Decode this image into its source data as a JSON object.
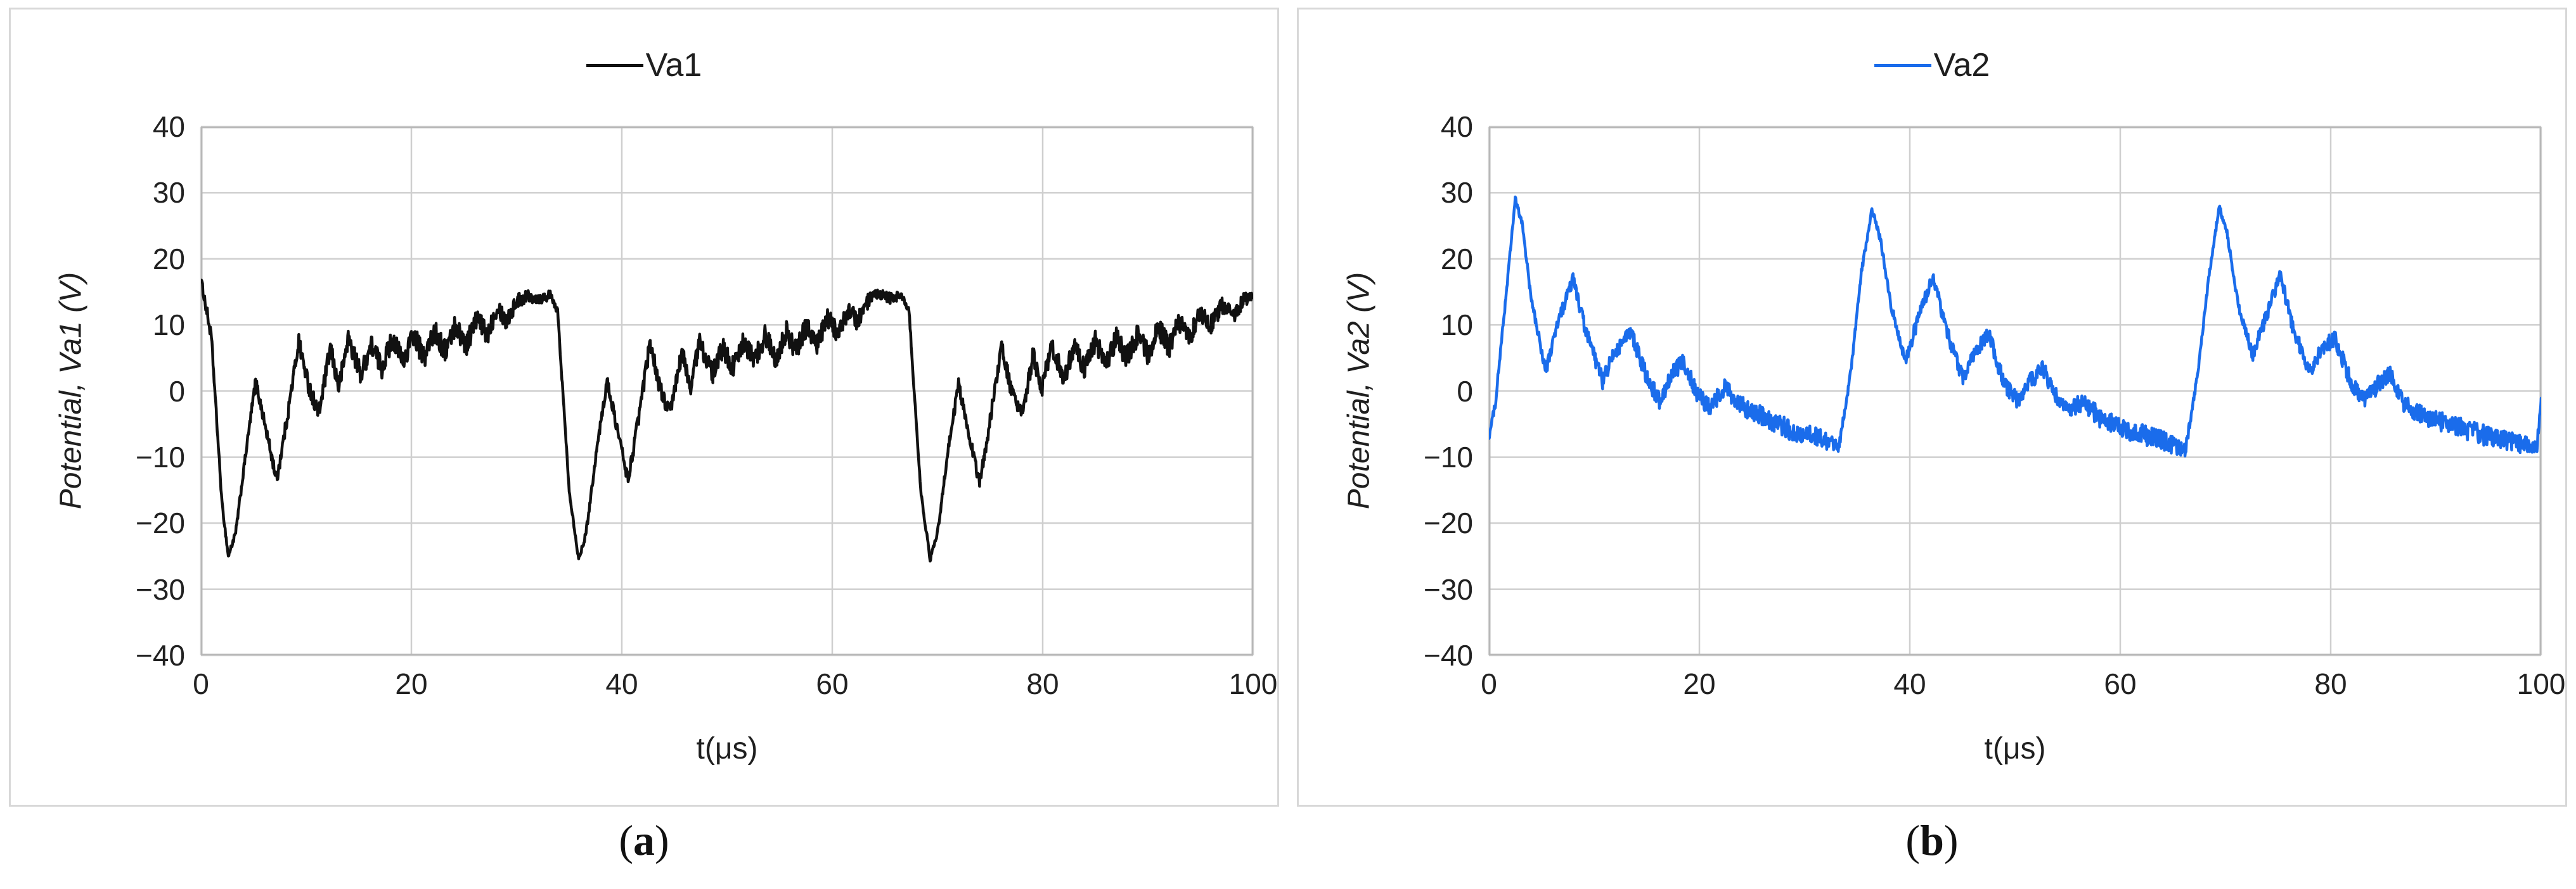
{
  "captions": [
    {
      "pre": "(",
      "letter": "a",
      "post": ")"
    },
    {
      "pre": "(",
      "letter": "b",
      "post": ")"
    }
  ],
  "colors": {
    "series_black": "#111111",
    "series_blue": "#1a6ceb",
    "gridline": "#cfcfcf",
    "plot_border": "#b8b8b8",
    "panel_border": "#d8d8d8"
  },
  "chart_data": [
    {
      "type": "line",
      "legend_label": "Va1",
      "xlabel": "t(μs)",
      "ylabel": "Potential, Va1 (V)",
      "xlim": [
        0,
        100
      ],
      "ylim": [
        -40,
        40
      ],
      "xticks": [
        0,
        20,
        40,
        60,
        80,
        100
      ],
      "yticks": [
        40,
        30,
        20,
        10,
        0,
        -10,
        -20,
        -30,
        -40
      ],
      "grid": true,
      "legend_position": "top-center",
      "series": [
        {
          "name": "Va1",
          "color": "#111111",
          "noise_note": "points are [t_us, volts, noise_amplitude_volts]",
          "points": [
            [
              0,
              17,
              0.5
            ],
            [
              0.5,
              12.5,
              1.0
            ],
            [
              1.0,
              8,
              0.8
            ],
            [
              2.0,
              -17,
              0.4
            ],
            [
              2.6,
              -25,
              0.4
            ],
            [
              3.3,
              -21.5,
              0.5
            ],
            [
              4.3,
              -9,
              0.6
            ],
            [
              5.2,
              1.5,
              0.9
            ],
            [
              6.2,
              -6,
              0.9
            ],
            [
              7.2,
              -13.5,
              1.0
            ],
            [
              8.2,
              -4,
              1.1
            ],
            [
              9.3,
              7.5,
              1.3
            ],
            [
              10.2,
              1,
              1.3
            ],
            [
              11.2,
              -3.5,
              1.3
            ],
            [
              12.3,
              6.5,
              1.4
            ],
            [
              13.1,
              0.5,
              1.4
            ],
            [
              14.0,
              8,
              1.5
            ],
            [
              15.2,
              2.5,
              1.5
            ],
            [
              16.2,
              7,
              1.6
            ],
            [
              17.2,
              3.5,
              1.6
            ],
            [
              18.2,
              8,
              1.6
            ],
            [
              19.2,
              4.5,
              1.6
            ],
            [
              20.2,
              8.5,
              1.7
            ],
            [
              21.2,
              5,
              1.7
            ],
            [
              22.2,
              9,
              1.7
            ],
            [
              23.2,
              6,
              1.7
            ],
            [
              24.2,
              10,
              1.7
            ],
            [
              25.2,
              7,
              1.7
            ],
            [
              26.2,
              11,
              1.6
            ],
            [
              27.2,
              8.5,
              1.6
            ],
            [
              28.2,
              13,
              1.4
            ],
            [
              29.0,
              10.5,
              1.4
            ],
            [
              30.0,
              13.5,
              1.2
            ],
            [
              31.0,
              14.5,
              1.0
            ],
            [
              32.2,
              14,
              0.9
            ],
            [
              33.2,
              14.5,
              0.7
            ],
            [
              33.9,
              12,
              0.5
            ],
            [
              35.0,
              -15,
              0.4
            ],
            [
              35.9,
              -25.5,
              0.4
            ],
            [
              36.6,
              -21.5,
              0.5
            ],
            [
              37.6,
              -9,
              0.6
            ],
            [
              38.6,
              1.5,
              0.9
            ],
            [
              39.6,
              -6,
              0.9
            ],
            [
              40.6,
              -13.5,
              1.0
            ],
            [
              41.6,
              -4,
              1.1
            ],
            [
              42.7,
              7.5,
              1.3
            ],
            [
              43.6,
              0.5,
              1.3
            ],
            [
              44.6,
              -3.5,
              1.3
            ],
            [
              45.7,
              6,
              1.4
            ],
            [
              46.5,
              0.5,
              1.4
            ],
            [
              47.4,
              7.5,
              1.5
            ],
            [
              48.6,
              2.5,
              1.5
            ],
            [
              49.6,
              6.5,
              1.6
            ],
            [
              50.6,
              3.5,
              1.6
            ],
            [
              51.6,
              7.5,
              1.6
            ],
            [
              52.6,
              4.5,
              1.6
            ],
            [
              53.6,
              8.5,
              1.7
            ],
            [
              54.6,
              5,
              1.7
            ],
            [
              55.6,
              9,
              1.7
            ],
            [
              56.6,
              6,
              1.7
            ],
            [
              57.6,
              10,
              1.7
            ],
            [
              58.6,
              7,
              1.7
            ],
            [
              59.6,
              11,
              1.6
            ],
            [
              60.6,
              8.5,
              1.6
            ],
            [
              61.6,
              12.5,
              1.4
            ],
            [
              62.4,
              10.5,
              1.4
            ],
            [
              63.4,
              13.5,
              1.2
            ],
            [
              64.4,
              14.5,
              1.0
            ],
            [
              65.6,
              14,
              0.9
            ],
            [
              66.6,
              14.5,
              0.7
            ],
            [
              67.3,
              12,
              0.5
            ],
            [
              68.4,
              -15,
              0.4
            ],
            [
              69.3,
              -25.5,
              0.4
            ],
            [
              70.0,
              -21.5,
              0.5
            ],
            [
              71.0,
              -9,
              0.6
            ],
            [
              72.0,
              1,
              0.9
            ],
            [
              73.0,
              -6.5,
              0.9
            ],
            [
              74.0,
              -14,
              1.0
            ],
            [
              75.0,
              -4.5,
              1.1
            ],
            [
              76.1,
              7,
              1.3
            ],
            [
              77.0,
              0,
              1.3
            ],
            [
              78.0,
              -4,
              1.3
            ],
            [
              79.1,
              5.5,
              1.4
            ],
            [
              79.9,
              0,
              1.4
            ],
            [
              80.8,
              7,
              1.5
            ],
            [
              82.0,
              2,
              1.5
            ],
            [
              83.0,
              6.5,
              1.6
            ],
            [
              84.0,
              3.5,
              1.6
            ],
            [
              85.0,
              7.5,
              1.6
            ],
            [
              86.0,
              4,
              1.6
            ],
            [
              87.0,
              8,
              1.7
            ],
            [
              88.0,
              5,
              1.7
            ],
            [
              89.0,
              8.5,
              1.7
            ],
            [
              90.0,
              5.5,
              1.7
            ],
            [
              91.0,
              9.5,
              1.7
            ],
            [
              92.0,
              6.5,
              1.7
            ],
            [
              93.0,
              10.5,
              1.6
            ],
            [
              94.0,
              8,
              1.6
            ],
            [
              95.0,
              12,
              1.5
            ],
            [
              96.0,
              10,
              1.5
            ],
            [
              97.0,
              13,
              1.3
            ],
            [
              98.2,
              11.5,
              1.3
            ],
            [
              99.2,
              14,
              1.0
            ],
            [
              100,
              14,
              0.8
            ]
          ]
        }
      ]
    },
    {
      "type": "line",
      "legend_label": "Va2",
      "xlabel": "t(μs)",
      "ylabel": "Potential, Va2 (V)",
      "xlim": [
        0,
        100
      ],
      "ylim": [
        -40,
        40
      ],
      "xticks": [
        0,
        20,
        40,
        60,
        80,
        100
      ],
      "yticks": [
        40,
        30,
        20,
        10,
        0,
        -10,
        -20,
        -30,
        -40
      ],
      "grid": true,
      "legend_position": "top-center",
      "series": [
        {
          "name": "Va2",
          "color": "#1a6ceb",
          "noise_note": "points are [t_us, volts, noise_amplitude_volts]",
          "points": [
            [
              0,
              -7,
              0.6
            ],
            [
              0.6,
              -2,
              0.6
            ],
            [
              1.6,
              14,
              0.5
            ],
            [
              2.5,
              29,
              0.5
            ],
            [
              3.2,
              25,
              0.6
            ],
            [
              4.0,
              14,
              0.6
            ],
            [
              5.4,
              3,
              1.0
            ],
            [
              6.5,
              10,
              1.1
            ],
            [
              8.0,
              17,
              1.0
            ],
            [
              9.2,
              9,
              1.1
            ],
            [
              10.8,
              1.5,
              1.2
            ],
            [
              12.0,
              6,
              1.2
            ],
            [
              13.5,
              9,
              1.2
            ],
            [
              15.0,
              2,
              1.3
            ],
            [
              16.2,
              -1.5,
              1.3
            ],
            [
              17.4,
              2.5,
              1.3
            ],
            [
              18.5,
              4.5,
              1.3
            ],
            [
              19.8,
              -0.5,
              1.4
            ],
            [
              21.0,
              -2.5,
              1.4
            ],
            [
              22.4,
              0.5,
              1.4
            ],
            [
              23.6,
              -2,
              1.5
            ],
            [
              25.5,
              -3.5,
              1.5
            ],
            [
              27.5,
              -5,
              1.5
            ],
            [
              29.5,
              -6.5,
              1.6
            ],
            [
              31.5,
              -7,
              1.6
            ],
            [
              33.3,
              -8.5,
              1.0
            ],
            [
              34.4,
              3,
              0.5
            ],
            [
              35.4,
              18,
              0.5
            ],
            [
              36.4,
              27.5,
              0.5
            ],
            [
              37.2,
              23,
              0.6
            ],
            [
              38.2,
              13,
              0.6
            ],
            [
              39.6,
              4.5,
              1.0
            ],
            [
              40.8,
              11,
              1.1
            ],
            [
              42.2,
              17.5,
              1.0
            ],
            [
              43.5,
              9,
              1.1
            ],
            [
              45.0,
              2,
              1.2
            ],
            [
              46.2,
              6,
              1.2
            ],
            [
              47.5,
              8.5,
              1.2
            ],
            [
              49.0,
              1,
              1.3
            ],
            [
              50.3,
              -1.5,
              1.3
            ],
            [
              51.5,
              1.5,
              1.3
            ],
            [
              52.6,
              3.5,
              1.3
            ],
            [
              54.0,
              -1,
              1.4
            ],
            [
              55.2,
              -3,
              1.4
            ],
            [
              56.5,
              -1.5,
              1.4
            ],
            [
              58.0,
              -4,
              1.5
            ],
            [
              60.0,
              -5.5,
              1.5
            ],
            [
              62.0,
              -6.5,
              1.6
            ],
            [
              64.2,
              -7.5,
              1.6
            ],
            [
              66.2,
              -9,
              1.0
            ],
            [
              67.4,
              3,
              0.5
            ],
            [
              68.4,
              17,
              0.5
            ],
            [
              69.4,
              28,
              0.5
            ],
            [
              70.2,
              23.5,
              0.6
            ],
            [
              71.2,
              13,
              0.6
            ],
            [
              72.6,
              5.5,
              1.0
            ],
            [
              73.8,
              11,
              1.1
            ],
            [
              75.2,
              17.5,
              1.0
            ],
            [
              76.5,
              9,
              1.1
            ],
            [
              78.0,
              3,
              1.2
            ],
            [
              79.2,
              6.5,
              1.2
            ],
            [
              80.4,
              8,
              1.2
            ],
            [
              82.0,
              1,
              1.3
            ],
            [
              83.3,
              -1.5,
              1.3
            ],
            [
              84.5,
              1,
              1.3
            ],
            [
              85.6,
              2.5,
              1.3
            ],
            [
              87.0,
              -2,
              1.4
            ],
            [
              88.5,
              -3.5,
              1.4
            ],
            [
              90.2,
              -4.5,
              1.5
            ],
            [
              92.2,
              -5.5,
              1.5
            ],
            [
              94.2,
              -6.5,
              1.6
            ],
            [
              96.2,
              -7.5,
              1.6
            ],
            [
              98.0,
              -8,
              1.4
            ],
            [
              99.6,
              -8.5,
              1.0
            ],
            [
              100,
              -1,
              0.5
            ]
          ]
        }
      ]
    }
  ]
}
